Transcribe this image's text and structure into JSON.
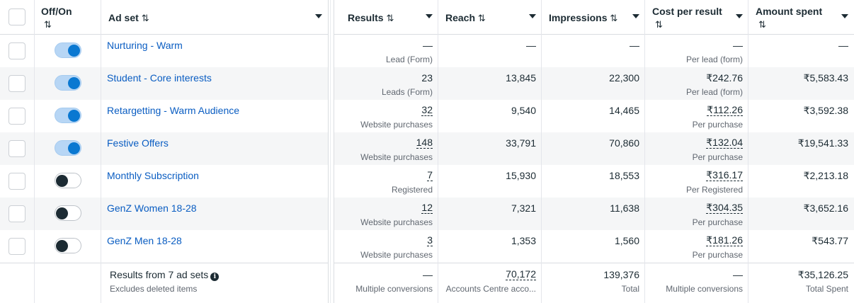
{
  "header": {
    "toggle_col": "Off/On",
    "adset_col": "Ad set",
    "results_col": "Results",
    "reach_col": "Reach",
    "impressions_col": "Impressions",
    "cpr_col": "Cost per result",
    "spent_col": "Amount spent",
    "sort_glyph": "⇅"
  },
  "rows": [
    {
      "on": true,
      "name": "Nurturing - Warm",
      "results": "—",
      "results_sub": "Lead (Form)",
      "reach": "—",
      "impressions": "—",
      "cpr": "—",
      "cpr_sub": "Per lead (form)",
      "spent": "—"
    },
    {
      "on": true,
      "name": "Student - Core interests",
      "results": "23",
      "results_sub": "Leads (Form)",
      "reach": "13,845",
      "impressions": "22,300",
      "cpr": "₹242.76",
      "cpr_sub": "Per lead (form)",
      "spent": "₹5,583.43"
    },
    {
      "on": true,
      "name": "Retargetting - Warm Audience",
      "results": "32",
      "results_sub": "Website purchases",
      "reach": "9,540",
      "impressions": "14,465",
      "cpr": "₹112.26",
      "cpr_sub": "Per purchase",
      "spent": "₹3,592.38"
    },
    {
      "on": true,
      "name": "Festive Offers",
      "results": "148",
      "results_sub": "Website purchases",
      "reach": "33,791",
      "impressions": "70,860",
      "cpr": "₹132.04",
      "cpr_sub": "Per purchase",
      "spent": "₹19,541.33"
    },
    {
      "on": false,
      "name": "Monthly Subscription",
      "results": "7",
      "results_sub": "Registered",
      "reach": "15,930",
      "impressions": "18,553",
      "cpr": "₹316.17",
      "cpr_sub": "Per Registered",
      "spent": "₹2,213.18"
    },
    {
      "on": false,
      "name": "GenZ Women 18-28",
      "results": "12",
      "results_sub": "Website purchases",
      "reach": "7,321",
      "impressions": "11,638",
      "cpr": "₹304.35",
      "cpr_sub": "Per purchase",
      "spent": "₹3,652.16"
    },
    {
      "on": false,
      "name": "GenZ Men 18-28",
      "results": "3",
      "results_sub": "Website purchases",
      "reach": "1,353",
      "impressions": "1,560",
      "cpr": "₹181.26",
      "cpr_sub": "Per purchase",
      "spent": "₹543.77"
    }
  ],
  "footer": {
    "title": "Results from 7 ad sets",
    "subtitle": "Excludes deleted items",
    "results": "—",
    "results_sub": "Multiple conversions",
    "reach": "70,172",
    "reach_sub": "Accounts Centre acco...",
    "impressions": "139,376",
    "impressions_sub": "Total",
    "cpr": "—",
    "cpr_sub": "Multiple conversions",
    "spent": "₹35,126.25",
    "spent_sub": "Total Spent"
  },
  "colors": {
    "link": "#0a5dc2",
    "toggle_on_knob": "#0a78d1",
    "toggle_off_knob": "#1c2b33"
  }
}
